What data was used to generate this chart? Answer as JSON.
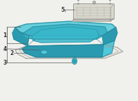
{
  "bg_color": "#f0f0ec",
  "line_color": "#555555",
  "pan_fill_main": "#4ec8da",
  "pan_fill_dark": "#2a9ab0",
  "pan_fill_mid": "#38b0c4",
  "pan_edge": "#2a8898",
  "gasket_edge": "#999999",
  "filter_fill": "#d8d8cc",
  "filter_edge": "#999999",
  "filter_grid": "#aaaaaa",
  "bolt_fill": "#4ec8da",
  "bolt_edge": "#2a8898",
  "label_color": "#333333",
  "label_fs": 5.5
}
